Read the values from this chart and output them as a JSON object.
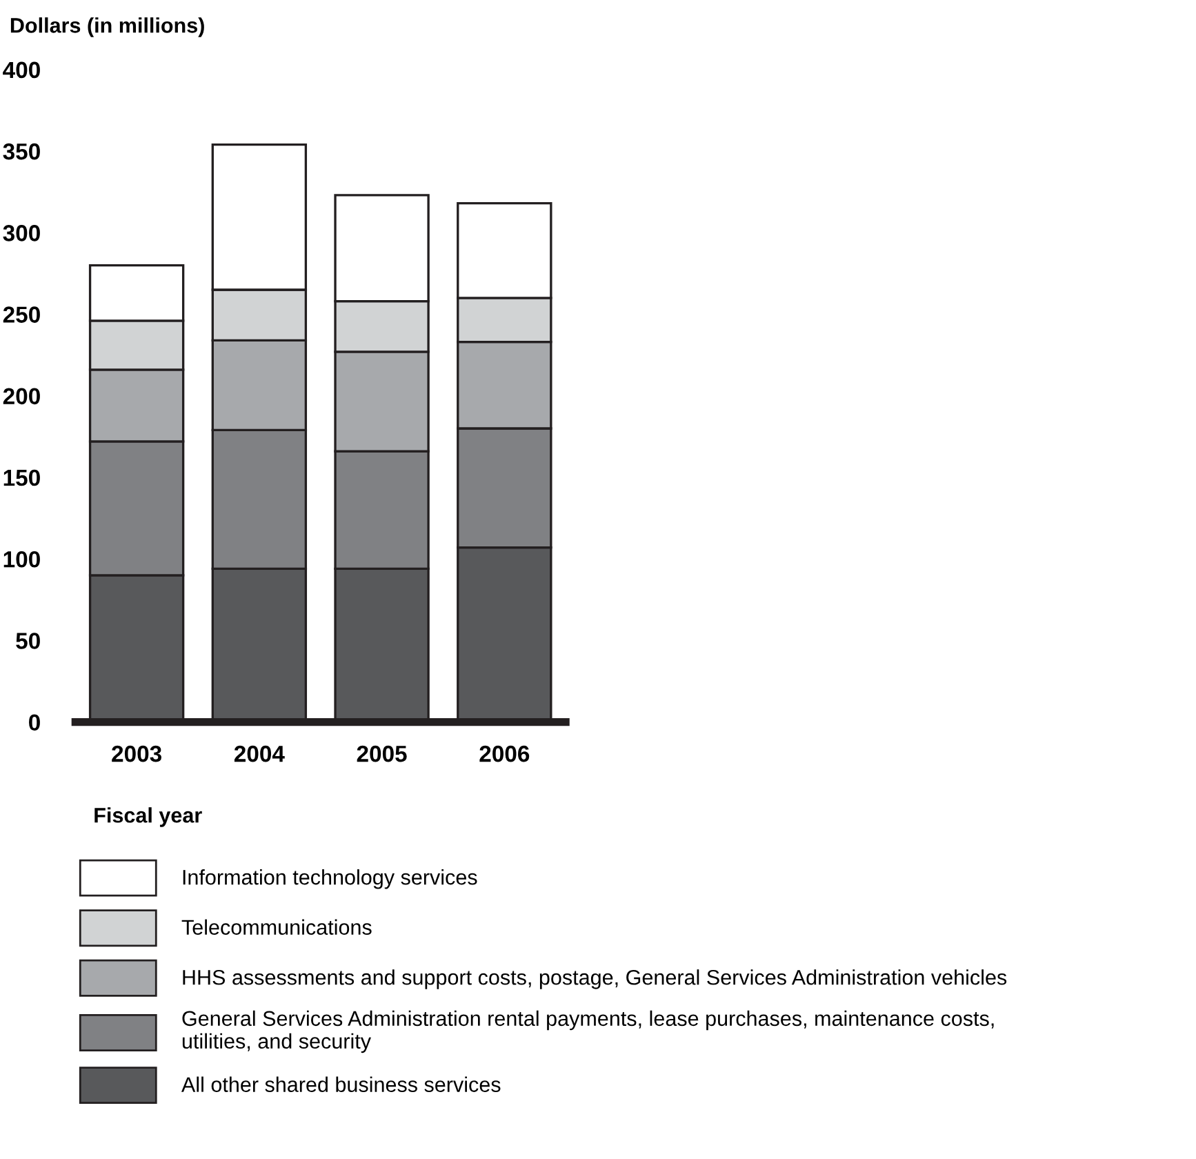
{
  "chart_data": {
    "type": "bar",
    "stacked": true,
    "ylabel": "Dollars (in millions)",
    "xlabel": "Fiscal year",
    "categories": [
      "2003",
      "2004",
      "2005",
      "2006"
    ],
    "series": [
      {
        "name": "All other shared business services",
        "color": "#58595b",
        "values": [
          90,
          94,
          94,
          107
        ]
      },
      {
        "name": "General Services Administration rental payments, lease purchases, maintenance costs,\nutilities, and security",
        "color": "#808184",
        "values": [
          82,
          85,
          72,
          73
        ]
      },
      {
        "name": "HHS assessments and support costs, postage, General Services Administration vehicles",
        "color": "#a7a9ac",
        "values": [
          44,
          55,
          61,
          53
        ]
      },
      {
        "name": "Telecommunications",
        "color": "#d1d3d4",
        "values": [
          30,
          31,
          31,
          27
        ]
      },
      {
        "name": "Information technology services",
        "color": "#ffffff",
        "values": [
          34,
          89,
          65,
          58
        ]
      }
    ],
    "ylim": [
      0,
      400
    ],
    "yticks": [
      0,
      50,
      100,
      150,
      200,
      250,
      300,
      350,
      400
    ],
    "grid": false,
    "legend": "bottom"
  }
}
